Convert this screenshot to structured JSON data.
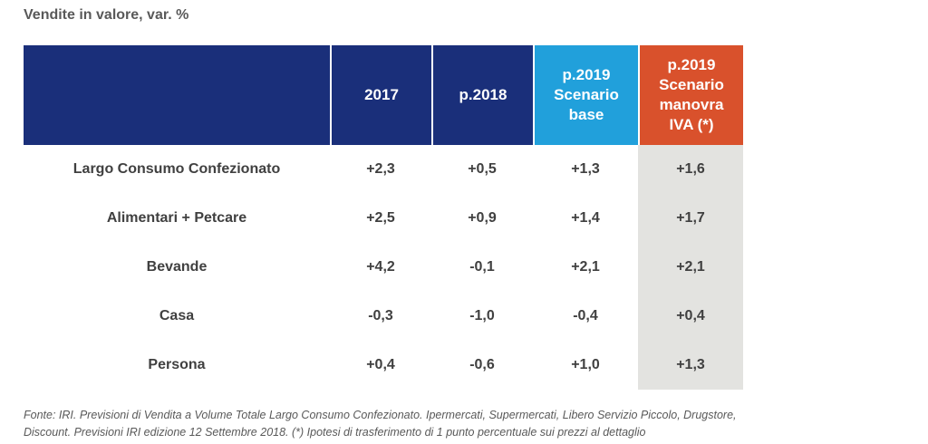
{
  "title": "Vendite in valore, var. %",
  "chart_data": {
    "type": "table",
    "columns": [
      {
        "lines": [
          ""
        ]
      },
      {
        "lines": [
          "2017"
        ]
      },
      {
        "lines": [
          "p.2018"
        ]
      },
      {
        "lines": [
          "p.2019",
          "Scenario",
          "base"
        ]
      },
      {
        "lines": [
          "p.2019",
          "Scenario",
          "manovra",
          "IVA (*)"
        ]
      }
    ],
    "rows": [
      {
        "label": "Largo Consumo Confezionato",
        "level": 0,
        "values": [
          "+2,3",
          "+0,5",
          "+1,3",
          "+1,6"
        ]
      },
      {
        "label": "Alimentari + Petcare",
        "level": 1,
        "values": [
          "+2,5",
          "+0,9",
          "+1,4",
          "+1,7"
        ]
      },
      {
        "label": "Bevande",
        "level": 1,
        "values": [
          "+4,2",
          "-0,1",
          "+2,1",
          "+2,1"
        ]
      },
      {
        "label": "Casa",
        "level": 1,
        "values": [
          "-0,3",
          "-1,0",
          "-0,4",
          "+0,4"
        ]
      },
      {
        "label": "Persona",
        "level": 1,
        "values": [
          "+0,4",
          "-0,6",
          "+1,0",
          "+1,3"
        ]
      }
    ],
    "colors": {
      "header_dark": "#1a2f7a",
      "header_base": "#21a0db",
      "header_iva": "#d9512c",
      "iva_column_fill": "#e3e3e0",
      "negative_text": "#c8412b",
      "positive_text": "#404040"
    }
  },
  "footnote": {
    "line1": "Fonte: IRI. Previsioni di Vendita a Volume Totale Largo Consumo Confezionato. Ipermercati, Supermercati, Libero Servizio Piccolo, Drugstore,",
    "line2": "Discount. Previsioni IRI edizione 12 Settembre 2018. (*) Ipotesi di trasferimento  di 1 punto percentuale sui prezzi al dettaglio"
  }
}
